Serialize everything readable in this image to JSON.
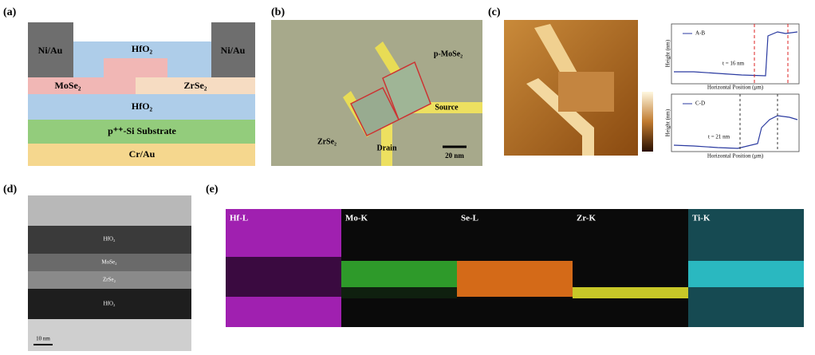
{
  "panels": {
    "a": {
      "label": "(a)",
      "layers": {
        "ni_au_left": "Ni/Au",
        "hfo2_top": "HfO₂",
        "ni_au_right": "Ni/Au",
        "mose2": "MoSe₂",
        "zrse2": "ZrSe₂",
        "hfo2_bottom": "HfO₂",
        "substrate": "p⁺⁺-Si Substrate",
        "cr_au": "Cr/Au"
      }
    },
    "b": {
      "label": "(b)",
      "annotations": {
        "mose2": "p-MoSe₂",
        "source": "Source",
        "zrse2": "ZrSe₂",
        "drain": "Drain",
        "scale": "20 nm"
      }
    },
    "c": {
      "label": "(c)",
      "top_plot": {
        "legend": "A-B",
        "thickness": "t = 16 nm",
        "ylabel": "Height (nm)",
        "xlabel": "Horizontal Position (μm)"
      },
      "bottom_plot": {
        "legend": "C-D",
        "thickness": "t = 21 nm",
        "ylabel": "Height (nm)",
        "xlabel": "Horizontal Position (μm)"
      }
    },
    "d": {
      "label": "(d)",
      "layers": [
        "HfO₂",
        "MoSe₂",
        "ZrSe₂",
        "HfO₂"
      ],
      "scale": "10 nm"
    },
    "e": {
      "label": "(e)",
      "maps": [
        "Hf-L",
        "Mo-K",
        "Se-L",
        "Zr-K",
        "Ti-K"
      ]
    }
  }
}
